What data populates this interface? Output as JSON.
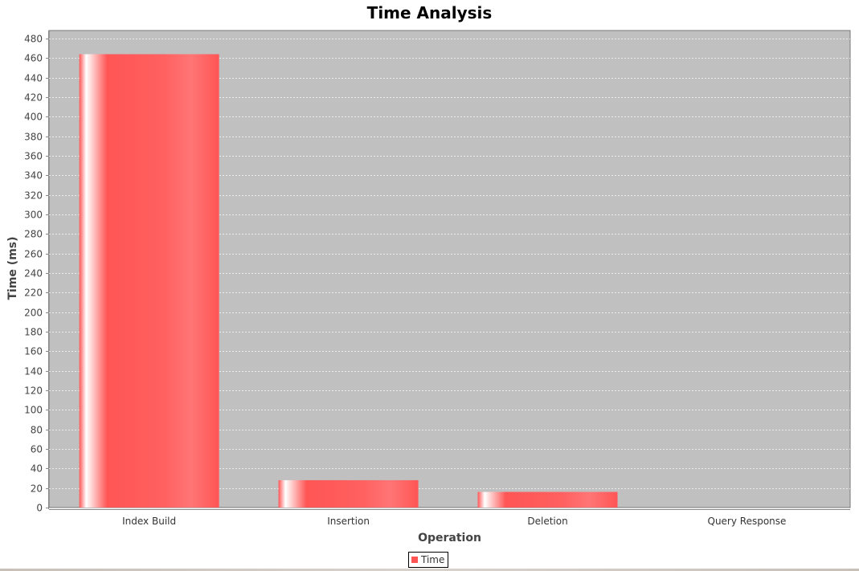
{
  "chart_data": {
    "type": "bar",
    "title": "Time Analysis",
    "xlabel": "Operation",
    "ylabel": "Time (ms)",
    "categories": [
      "Index Build",
      "Insertion",
      "Deletion",
      "Query Response"
    ],
    "series": [
      {
        "name": "Time",
        "values": [
          464,
          28,
          16,
          0
        ],
        "color": "#ff5555"
      }
    ],
    "ylim": [
      0,
      480
    ],
    "yticks": [
      0,
      20,
      40,
      60,
      80,
      100,
      120,
      140,
      160,
      180,
      200,
      220,
      240,
      260,
      280,
      300,
      320,
      340,
      360,
      380,
      400,
      420,
      440,
      460,
      480
    ],
    "grid": true,
    "legend": "bottom-center",
    "plot_background": "#c0c0c0"
  }
}
